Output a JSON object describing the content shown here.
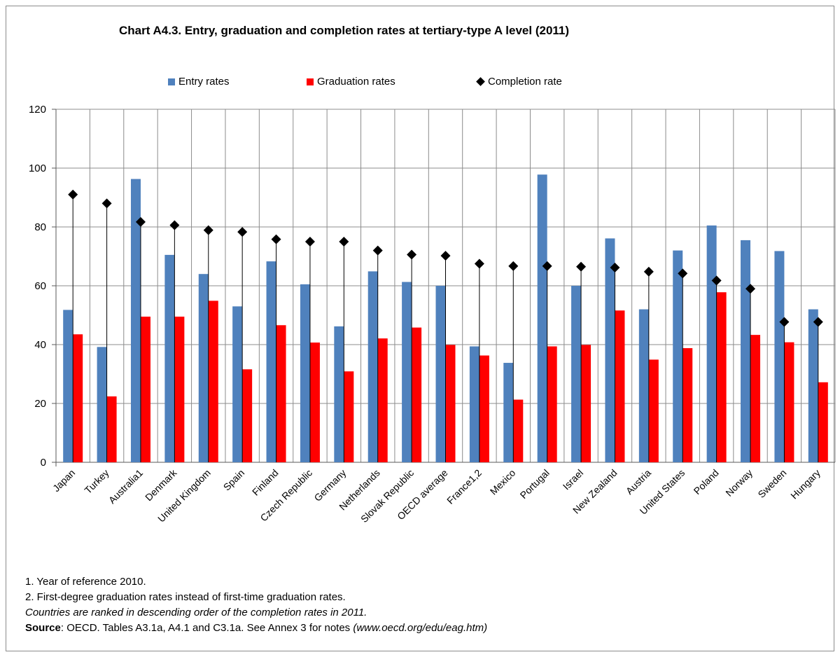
{
  "chart_data": {
    "type": "bar",
    "title": "Chart A4.3. Entry, graduation and completion rates at tertiary-type A level (2011)",
    "xlabel": "",
    "ylabel": "",
    "ylim": [
      0,
      120
    ],
    "yticks": [
      0,
      20,
      40,
      60,
      80,
      100,
      120
    ],
    "grid": true,
    "legend_position": "top",
    "categories": [
      "Japan",
      "Turkey",
      "Australia1",
      "Denmark",
      "United Kingdom",
      "Spain",
      "Finland",
      "Czech Republic",
      "Germany",
      "Netherlands",
      "Slovak Republic",
      "OECD average",
      "France1,2",
      "Mexico",
      "Portugal",
      "Israel",
      "New Zealand",
      "Austria",
      "United States",
      "Poland",
      "Norway",
      "Sweden",
      "Hungary"
    ],
    "series": [
      {
        "name": "Entry rates",
        "kind": "bar",
        "color": "#4f81bd",
        "values": [
          51.8,
          39.2,
          96.3,
          70.5,
          64.0,
          53.0,
          68.3,
          60.5,
          46.2,
          64.9,
          61.3,
          60.0,
          39.4,
          33.8,
          97.8,
          60.0,
          76.1,
          52.0,
          72.0,
          80.5,
          75.5,
          71.8,
          52.0
        ]
      },
      {
        "name": "Graduation rates",
        "kind": "bar",
        "color": "#ff0000",
        "values": [
          43.5,
          22.4,
          49.5,
          49.5,
          54.9,
          31.6,
          46.6,
          40.7,
          30.9,
          42.1,
          45.8,
          39.9,
          36.3,
          21.3,
          39.4,
          39.9,
          51.6,
          34.9,
          38.8,
          57.8,
          43.3,
          40.8,
          27.2
        ]
      },
      {
        "name": "Completion rate",
        "kind": "marker",
        "color": "#000000",
        "values": [
          91.0,
          88.0,
          81.7,
          80.6,
          78.9,
          78.3,
          75.8,
          75.0,
          75.0,
          72.0,
          70.6,
          70.2,
          67.5,
          66.7,
          66.7,
          66.5,
          66.2,
          64.8,
          64.2,
          61.8,
          59.0,
          47.7,
          47.7
        ]
      }
    ]
  },
  "notes": {
    "note1": "1. Year of reference 2010.",
    "note2": "2. First-degree graduation rates instead of first-time graduation rates.",
    "ranking": "Countries are ranked in descending order of the completion rates in 2011.",
    "source_label": "Source",
    "source_text": ": OECD. Tables A3.1a, A4.1 and C3.1a. See Annex 3 for notes ",
    "source_url": "(www.oecd.org/edu/eag.htm)"
  }
}
